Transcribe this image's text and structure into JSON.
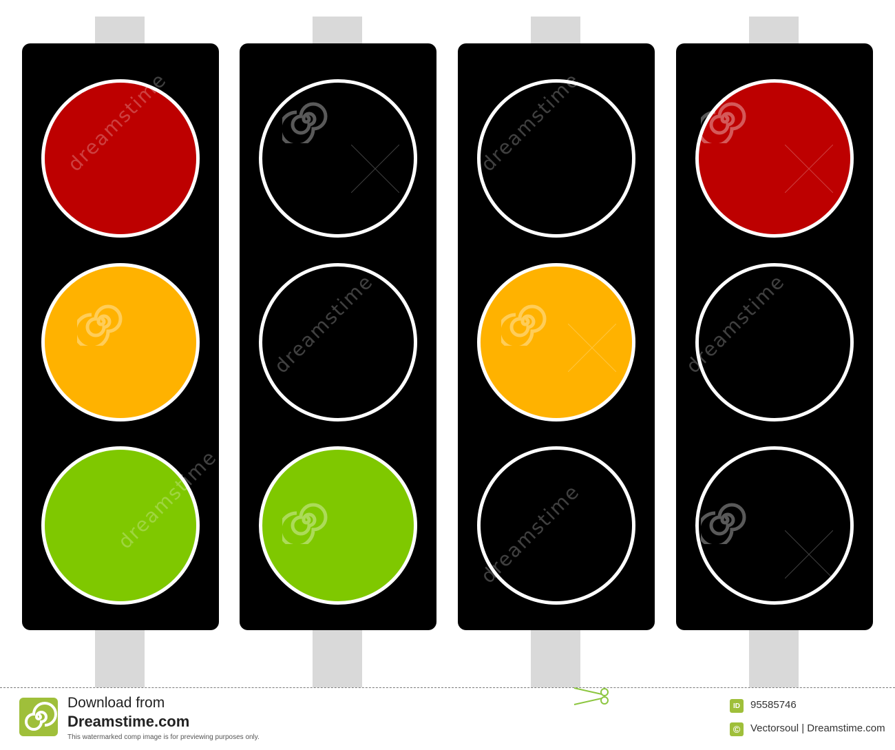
{
  "colors": {
    "red": "#bd0000",
    "amber": "#ffb200",
    "green": "#7fc800",
    "off": "#000000",
    "housing": "#000000",
    "pole": "#d9d9d9",
    "ring": "#ffffff"
  },
  "traffic_lights": [
    {
      "lamps": [
        "red",
        "amber",
        "green"
      ]
    },
    {
      "lamps": [
        "off",
        "off",
        "green"
      ]
    },
    {
      "lamps": [
        "off",
        "amber",
        "off"
      ]
    },
    {
      "lamps": [
        "red",
        "off",
        "off"
      ]
    }
  ],
  "watermark": {
    "text": "dreamstime",
    "icon": "spiral-icon"
  },
  "footer": {
    "download_text": "Download from",
    "brand": "Dreamstime.com",
    "note": "This watermarked comp image is for previewing purposes only.",
    "id_badge": "ID",
    "id_value": "95585746",
    "copyright_badge": "©",
    "author": "Vectorsoul | Dreamstime.com",
    "icons": [
      "dreamstime-logo-icon",
      "scissors-icon"
    ]
  }
}
